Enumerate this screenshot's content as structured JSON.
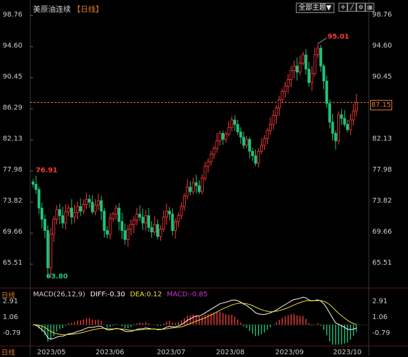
{
  "header": {
    "title": "美原油连续",
    "period": "【日线】",
    "theme_button": "全部主题▼",
    "icons": [
      "crosshair-icon",
      "line-icon",
      "settings-icon",
      "grid-icon"
    ]
  },
  "colors": {
    "up": "#ff3a3a",
    "down": "#1fc47b",
    "price_line": "#e2792b",
    "diff": "#ffffff",
    "dea": "#f0e030",
    "macd": "#cc33cc"
  },
  "y_labels": [
    "98.76",
    "94.60",
    "90.45",
    "86.29",
    "82.13",
    "77.98",
    "73.82",
    "69.66",
    "65.51"
  ],
  "current_price": "87.15",
  "annotations": {
    "high_label": "95.01",
    "left_high_label": "76.91",
    "low_label": "63.80"
  },
  "macd": {
    "title": "MACD(26,12,9)",
    "diff": "DIFF:-0.30",
    "dea": "DEA:0.12",
    "macd": "MACD:-0.85",
    "y_labels": [
      "2.91",
      "1.06",
      "-0.79"
    ]
  },
  "x_labels": [
    "2023/05",
    "2023/06",
    "2023/07",
    "2023/08",
    "2023/09",
    "2023/10"
  ],
  "corner_label": "日线",
  "chart_data": {
    "type": "candlestick",
    "ylim": [
      63.5,
      99.0
    ],
    "x": [
      "2023/05",
      "2023/06",
      "2023/07",
      "2023/08",
      "2023/09",
      "2023/10"
    ],
    "close_track": [
      76.2,
      75.5,
      73.0,
      71.5,
      70.0,
      65.0,
      69.5,
      71.5,
      72.8,
      72.0,
      71.0,
      72.5,
      73.0,
      71.8,
      72.4,
      73.2,
      72.6,
      73.5,
      74.2,
      73.8,
      72.5,
      73.4,
      74.0,
      72.6,
      70.0,
      69.5,
      71.6,
      72.2,
      73.0,
      71.2,
      70.0,
      68.8,
      70.2,
      70.8,
      71.4,
      72.2,
      71.8,
      71.0,
      72.0,
      70.4,
      69.8,
      70.8,
      69.2,
      70.2,
      71.8,
      72.6,
      72.2,
      70.0,
      71.2,
      72.0,
      73.2,
      74.6,
      75.8,
      75.2,
      76.4,
      76.0,
      75.2,
      77.0,
      78.6,
      79.2,
      80.2,
      81.0,
      82.0,
      83.0,
      82.2,
      82.9,
      83.8,
      84.8,
      84.2,
      83.2,
      82.5,
      81.4,
      82.2,
      80.6,
      80.0,
      79.0,
      80.6,
      81.4,
      82.3,
      83.4,
      84.2,
      85.4,
      86.4,
      87.5,
      88.6,
      89.3,
      90.2,
      91.4,
      92.0,
      91.2,
      92.4,
      93.5,
      91.6,
      89.8,
      91.0,
      93.5,
      94.4,
      92.0,
      90.0,
      87.0,
      84.5,
      83.0,
      82.0,
      85.5,
      85.0,
      84.2,
      83.5,
      84.8,
      86.0,
      87.15
    ],
    "high": 95.01,
    "low": 63.8,
    "left_high": 76.91,
    "current": 87.15,
    "macd": {
      "diff": -0.3,
      "dea": 0.12,
      "macd": -0.85,
      "ylim": [
        -2.2,
        3.3
      ]
    }
  }
}
